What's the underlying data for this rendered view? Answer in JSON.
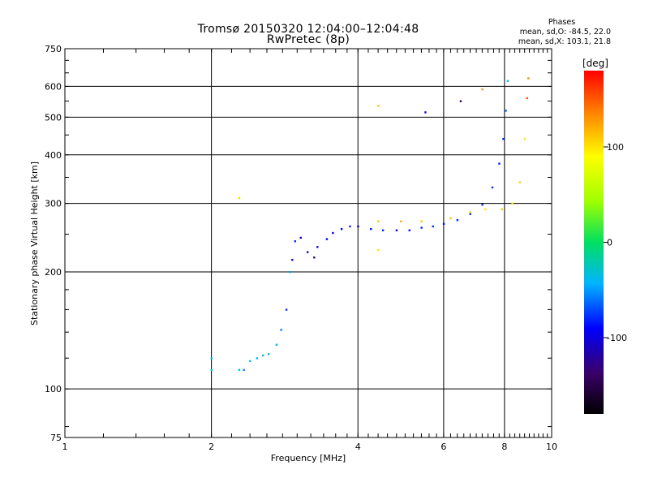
{
  "titles": {
    "line1": "Tromsø 20150320 12:04:00–12:04:48",
    "line2": "RwPretec (8p)"
  },
  "phases": {
    "header": "Phases",
    "line1": "mean, sd,O: -84.5, 22.0",
    "line2": "mean, sd,X: 103.1, 21.8"
  },
  "colorbar": {
    "unit": "[deg]",
    "range": [
      -180,
      180
    ],
    "tick_values": [
      100,
      0,
      -100
    ],
    "tick_labels": [
      "100",
      "0",
      "-100"
    ]
  },
  "chart_data": {
    "type": "scatter",
    "title": "Tromsø 20150320 12:04:00–12:04:48",
    "subtitle": "RwPretec (8p)",
    "xlabel": "Frequency [MHz]",
    "ylabel": "Stationary phase Virtual Height [km]",
    "x_scale": "log",
    "y_scale": "log",
    "xlim": [
      1,
      10
    ],
    "ylim": [
      75,
      750
    ],
    "x_ticks": [
      1,
      2,
      4,
      6,
      8,
      10
    ],
    "x_tick_labels": [
      "1",
      "2",
      "4",
      "6",
      "8",
      "10"
    ],
    "y_ticks": [
      75,
      100,
      200,
      300,
      400,
      500,
      600,
      750
    ],
    "y_tick_labels": [
      "75",
      "100",
      "200",
      "300",
      "400",
      "500",
      "600",
      "750"
    ],
    "grid": true,
    "color_encoding": "phase [deg]",
    "points": [
      {
        "x": 2.0,
        "y": 120,
        "p": -40
      },
      {
        "x": 2.0,
        "y": 112,
        "p": -40
      },
      {
        "x": 2.28,
        "y": 112,
        "p": -45
      },
      {
        "x": 2.33,
        "y": 112,
        "p": -60
      },
      {
        "x": 2.4,
        "y": 118,
        "p": -30
      },
      {
        "x": 2.48,
        "y": 120,
        "p": -40
      },
      {
        "x": 2.55,
        "y": 122,
        "p": -35
      },
      {
        "x": 2.62,
        "y": 123,
        "p": -40
      },
      {
        "x": 2.72,
        "y": 130,
        "p": -40
      },
      {
        "x": 2.78,
        "y": 142,
        "p": -60
      },
      {
        "x": 2.85,
        "y": 160,
        "p": -80
      },
      {
        "x": 2.9,
        "y": 200,
        "p": -50
      },
      {
        "x": 2.93,
        "y": 215,
        "p": -100
      },
      {
        "x": 2.97,
        "y": 240,
        "p": -80
      },
      {
        "x": 3.05,
        "y": 245,
        "p": -110
      },
      {
        "x": 3.15,
        "y": 225,
        "p": -120
      },
      {
        "x": 3.25,
        "y": 218,
        "p": -130
      },
      {
        "x": 3.3,
        "y": 232,
        "p": -100
      },
      {
        "x": 3.45,
        "y": 243,
        "p": -90
      },
      {
        "x": 3.55,
        "y": 252,
        "p": -100
      },
      {
        "x": 3.7,
        "y": 258,
        "p": -90
      },
      {
        "x": 3.85,
        "y": 262,
        "p": -80
      },
      {
        "x": 4.0,
        "y": 262,
        "p": -90
      },
      {
        "x": 4.25,
        "y": 258,
        "p": -85
      },
      {
        "x": 4.5,
        "y": 256,
        "p": -80
      },
      {
        "x": 4.8,
        "y": 256,
        "p": -90
      },
      {
        "x": 5.1,
        "y": 256,
        "p": -85
      },
      {
        "x": 5.4,
        "y": 260,
        "p": -80
      },
      {
        "x": 5.7,
        "y": 262,
        "p": -80
      },
      {
        "x": 6.0,
        "y": 266,
        "p": -85
      },
      {
        "x": 6.4,
        "y": 272,
        "p": -80
      },
      {
        "x": 6.8,
        "y": 282,
        "p": -80
      },
      {
        "x": 7.2,
        "y": 298,
        "p": -80
      },
      {
        "x": 7.55,
        "y": 330,
        "p": -80
      },
      {
        "x": 7.8,
        "y": 380,
        "p": -80
      },
      {
        "x": 7.95,
        "y": 440,
        "p": -80
      },
      {
        "x": 8.05,
        "y": 520,
        "p": -60
      },
      {
        "x": 8.12,
        "y": 620,
        "p": -40
      },
      {
        "x": 4.4,
        "y": 270,
        "p": 110
      },
      {
        "x": 4.9,
        "y": 270,
        "p": 120
      },
      {
        "x": 5.4,
        "y": 270,
        "p": 110
      },
      {
        "x": 6.2,
        "y": 275,
        "p": 110
      },
      {
        "x": 6.8,
        "y": 285,
        "p": 105
      },
      {
        "x": 7.3,
        "y": 290,
        "p": 100
      },
      {
        "x": 7.9,
        "y": 290,
        "p": 110
      },
      {
        "x": 8.3,
        "y": 300,
        "p": 100
      },
      {
        "x": 8.6,
        "y": 340,
        "p": 105
      },
      {
        "x": 8.8,
        "y": 440,
        "p": 100
      },
      {
        "x": 8.9,
        "y": 560,
        "p": 150
      },
      {
        "x": 8.95,
        "y": 630,
        "p": 130
      },
      {
        "x": 4.4,
        "y": 228,
        "p": 100
      },
      {
        "x": 4.4,
        "y": 535,
        "p": 110
      },
      {
        "x": 2.28,
        "y": 310,
        "p": 105
      },
      {
        "x": 5.5,
        "y": 515,
        "p": -100
      },
      {
        "x": 6.5,
        "y": 550,
        "p": -130
      },
      {
        "x": 7.2,
        "y": 590,
        "p": 130
      }
    ]
  }
}
